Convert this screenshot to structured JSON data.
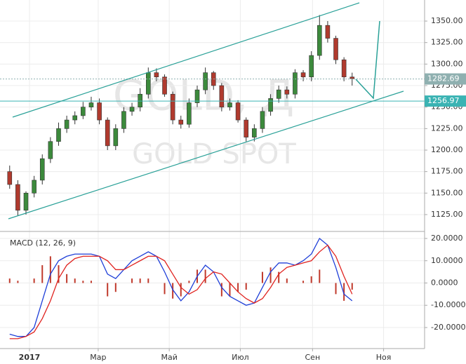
{
  "chart_data": [
    {
      "type": "candlestick",
      "watermark": "GOLD, Д",
      "watermark_sub": "GOLD SPOT",
      "x": [
        -17,
        -10,
        -3,
        4,
        11,
        18,
        25,
        32,
        39,
        46,
        53,
        60,
        67,
        74,
        81,
        88,
        95,
        102,
        109,
        116,
        123,
        130,
        137,
        144,
        151,
        158,
        165,
        172,
        179,
        186,
        193,
        200,
        207,
        214,
        221,
        228,
        235,
        242,
        249,
        256,
        263,
        270,
        277
      ],
      "open": [
        1175,
        1160,
        1130,
        1150,
        1165,
        1190,
        1210,
        1225,
        1235,
        1240,
        1250,
        1255,
        1235,
        1205,
        1225,
        1245,
        1250,
        1265,
        1290,
        1285,
        1265,
        1235,
        1230,
        1255,
        1270,
        1290,
        1275,
        1250,
        1255,
        1235,
        1215,
        1225,
        1245,
        1260,
        1270,
        1265,
        1290,
        1285,
        1310,
        1345,
        1330,
        1305,
        1285
      ],
      "high": [
        1182,
        1165,
        1152,
        1170,
        1195,
        1215,
        1232,
        1240,
        1245,
        1256,
        1262,
        1260,
        1238,
        1230,
        1250,
        1255,
        1272,
        1296,
        1295,
        1288,
        1268,
        1240,
        1260,
        1275,
        1296,
        1292,
        1278,
        1260,
        1258,
        1238,
        1230,
        1250,
        1265,
        1275,
        1274,
        1294,
        1293,
        1315,
        1357,
        1350,
        1333,
        1308,
        1290
      ],
      "low": [
        1155,
        1124,
        1125,
        1145,
        1160,
        1185,
        1205,
        1220,
        1230,
        1236,
        1246,
        1230,
        1200,
        1200,
        1220,
        1240,
        1245,
        1260,
        1280,
        1262,
        1230,
        1225,
        1226,
        1250,
        1265,
        1270,
        1245,
        1246,
        1232,
        1210,
        1210,
        1220,
        1240,
        1255,
        1260,
        1260,
        1280,
        1280,
        1305,
        1325,
        1300,
        1280,
        1275
      ],
      "close": [
        1160,
        1130,
        1150,
        1165,
        1190,
        1210,
        1225,
        1235,
        1240,
        1250,
        1255,
        1235,
        1205,
        1225,
        1245,
        1250,
        1265,
        1290,
        1285,
        1265,
        1235,
        1230,
        1255,
        1270,
        1290,
        1275,
        1250,
        1255,
        1235,
        1215,
        1225,
        1245,
        1260,
        1270,
        1265,
        1290,
        1285,
        1310,
        1345,
        1330,
        1305,
        1285,
        1283
      ],
      "up_color": "#3c8a3c",
      "down_color": "#b03a2e",
      "xlim": [
        -25.3,
        339.2
      ],
      "ylim": [
        1105.4,
        1374.5
      ],
      "yticks": [
        {
          "value": 1125,
          "label": "1125.00"
        },
        {
          "value": 1150,
          "label": "1150.00"
        },
        {
          "value": 1175,
          "label": "1175.00"
        },
        {
          "value": 1200,
          "label": "1200.00"
        },
        {
          "value": 1225,
          "label": "1225.00"
        },
        {
          "value": 1250,
          "label": "1250.00"
        },
        {
          "value": 1275,
          "label": "1275.00"
        },
        {
          "value": 1300,
          "label": "1300.00"
        },
        {
          "value": 1325,
          "label": "1325.00"
        },
        {
          "value": 1350,
          "label": "1350.00"
        }
      ],
      "grid": true,
      "price_lines": [
        {
          "value": 1282.69,
          "color": "#8fb0b0"
        },
        {
          "value": 1256.97,
          "color": "#3ab3b3"
        }
      ]
    },
    {
      "type": "macd",
      "title": "MACD (12, 26, 9)",
      "x": [
        -17,
        -10,
        -3,
        4,
        11,
        18,
        25,
        32,
        39,
        46,
        53,
        60,
        67,
        74,
        81,
        88,
        95,
        102,
        109,
        116,
        123,
        130,
        137,
        144,
        151,
        158,
        165,
        172,
        179,
        186,
        193,
        200,
        207,
        214,
        221,
        228,
        235,
        242,
        249,
        256,
        263,
        270,
        277
      ],
      "series": [
        {
          "color": "#1f3fd8",
          "values": [
            -23,
            -24,
            -24,
            -20,
            -8,
            4,
            10,
            12,
            13,
            13,
            13,
            12,
            4,
            2,
            6,
            10,
            12,
            14,
            12,
            5,
            -3,
            -8,
            -4,
            3,
            8,
            5,
            -2,
            -6,
            -8,
            -10,
            -9,
            -2,
            5,
            9,
            9,
            8,
            10,
            13,
            20,
            17,
            7,
            -5,
            -8
          ]
        },
        {
          "color": "#e0231f",
          "values": [
            -25,
            -25,
            -24,
            -22,
            -16,
            -8,
            2,
            8,
            11,
            12,
            12,
            12,
            10,
            6,
            6,
            8,
            10,
            12,
            12,
            10,
            4,
            -2,
            -5,
            -3,
            2,
            5,
            4,
            0,
            -4,
            -7,
            -9,
            -7,
            -2,
            4,
            7,
            8,
            9,
            10,
            14,
            17,
            12,
            3,
            -5
          ]
        }
      ],
      "histogram": {
        "color": "#c0392b",
        "values": [
          2,
          1,
          0,
          2,
          8,
          12,
          8,
          4,
          2,
          1,
          1,
          0,
          -6,
          -4,
          0,
          2,
          2,
          2,
          0,
          -5,
          -7,
          -6,
          1,
          6,
          6,
          0,
          -6,
          -6,
          -4,
          -3,
          0,
          5,
          7,
          5,
          2,
          0,
          1,
          3,
          6,
          0,
          -5,
          -8,
          -3
        ]
      },
      "xlim": [
        -25.3,
        339.2
      ],
      "ylim": [
        -29.45,
        23.15
      ],
      "yticks": [
        {
          "value": 20,
          "label": "20.0000"
        },
        {
          "value": 10,
          "label": "10.0000"
        },
        {
          "value": 0,
          "label": "0.0000"
        },
        {
          "value": -10,
          "label": "-10.0000"
        },
        {
          "value": -20,
          "label": "-20.0000"
        }
      ],
      "grid": true,
      "xticks": [
        {
          "value": 0,
          "label": "2017"
        },
        {
          "value": 59,
          "label": "Мар"
        },
        {
          "value": 120,
          "label": "Май"
        },
        {
          "value": 181,
          "label": "Июл"
        },
        {
          "value": 243,
          "label": "Сен"
        },
        {
          "value": 304,
          "label": "Ноя"
        }
      ]
    }
  ]
}
